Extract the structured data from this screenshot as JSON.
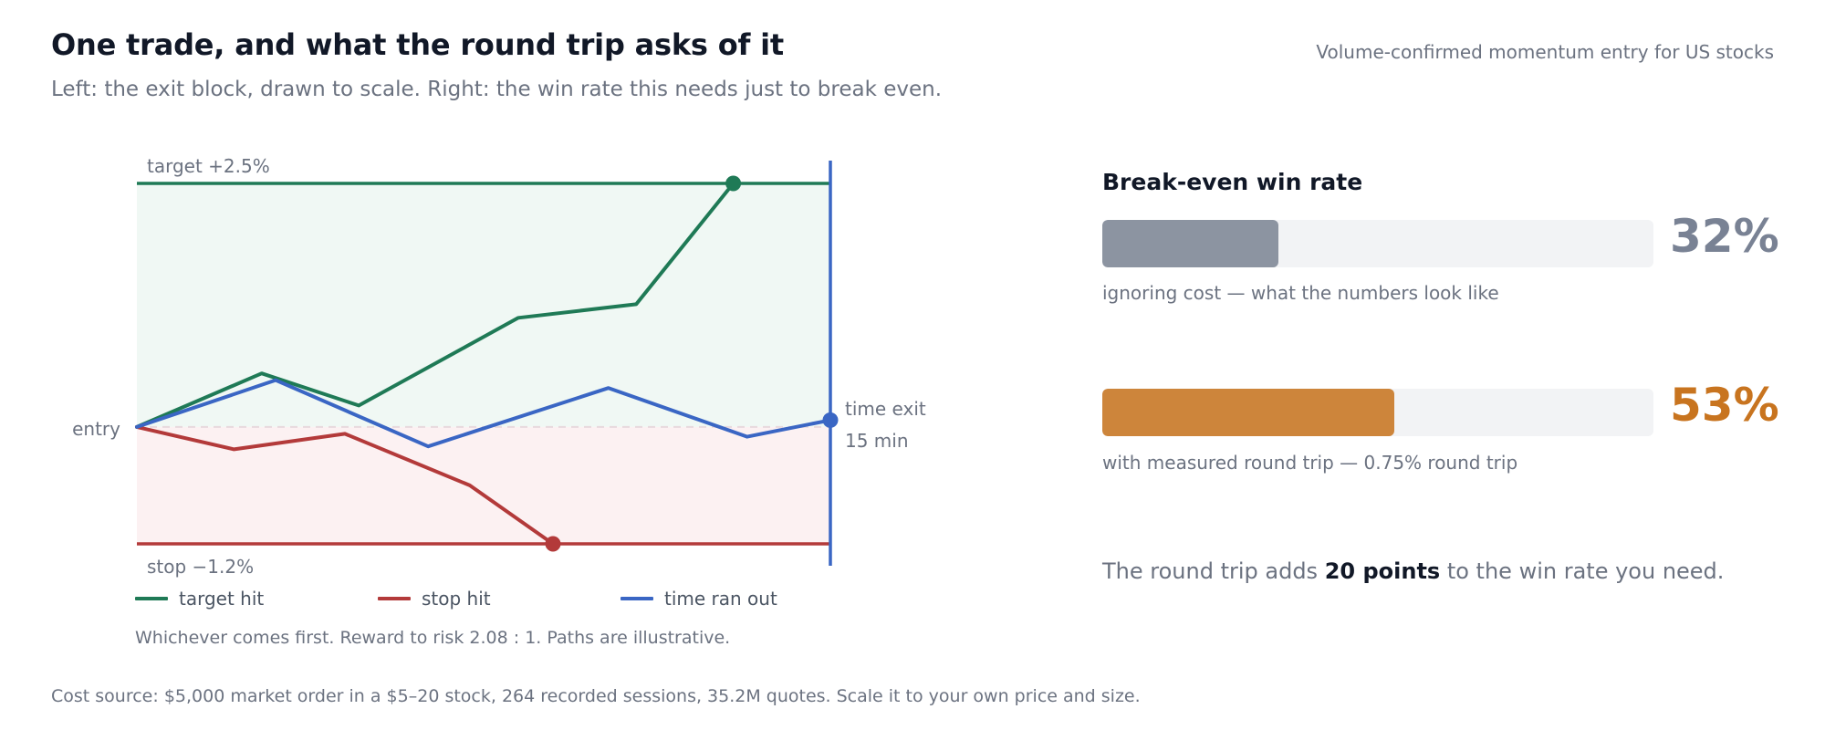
{
  "header": {
    "title": "One trade, and what the round trip asks of it",
    "subtitle": "Left: the exit block, drawn to scale. Right: the win rate this needs just to break even.",
    "note": "Volume-confirmed momentum entry for US stocks"
  },
  "chart_data": [
    {
      "type": "line",
      "labels": {
        "target": "target +2.5%",
        "stop": "stop −1.2%",
        "entry": "entry",
        "time_exit": [
          "time exit",
          "15 min"
        ]
      },
      "levels": {
        "target": 2.5,
        "stop": -1.2,
        "entry": 0
      },
      "y_range": [
        -1.2,
        2.5
      ],
      "x_range": [
        0,
        1
      ],
      "series": [
        {
          "name": "target hit",
          "color": "#1f7a56",
          "points": [
            [
              0,
              0
            ],
            [
              0.18,
              0.55
            ],
            [
              0.32,
              0.22
            ],
            [
              0.55,
              1.12
            ],
            [
              0.72,
              1.26
            ],
            [
              0.86,
              2.5
            ]
          ],
          "end_marker": true
        },
        {
          "name": "stop hit",
          "color": "#b33a3a",
          "points": [
            [
              0,
              0
            ],
            [
              0.14,
              -0.23
            ],
            [
              0.3,
              -0.07
            ],
            [
              0.48,
              -0.6
            ],
            [
              0.6,
              -1.2
            ]
          ],
          "end_marker": true
        },
        {
          "name": "time ran out",
          "color": "#3a66c4",
          "points": [
            [
              0,
              0
            ],
            [
              0.2,
              0.48
            ],
            [
              0.42,
              -0.2
            ],
            [
              0.68,
              0.4
            ],
            [
              0.88,
              -0.1
            ],
            [
              1.0,
              0.07
            ]
          ],
          "end_marker": true
        }
      ],
      "colors": {
        "target_zone": "#f0f8f4",
        "stop_zone": "#fcf1f2",
        "time_line": "#3a66c4",
        "target_line": "#1f7a56",
        "stop_line": "#b33a3a"
      },
      "caption": "Whichever comes first. Reward to risk 2.08 : 1. Paths are illustrative."
    },
    {
      "type": "bar",
      "title": "Break-even win rate",
      "categories": [
        "ignoring cost — what the numbers look like",
        "with measured round trip — 0.75% round trip"
      ],
      "values": [
        32,
        53
      ],
      "value_labels": [
        "32%",
        "53%"
      ],
      "colors": [
        "#8c94a1",
        "#cd853b"
      ],
      "value_colors": [
        "#798294",
        "#c8741f"
      ],
      "xlim": [
        0,
        100
      ]
    }
  ],
  "summary": {
    "before": "The round trip adds ",
    "bold": "20 points",
    "after": " to the win rate you need."
  },
  "footer": "Cost source: $5,000 market order in a $5–20 stock, 264 recorded sessions, 35.2M quotes. Scale it to your own price and size."
}
